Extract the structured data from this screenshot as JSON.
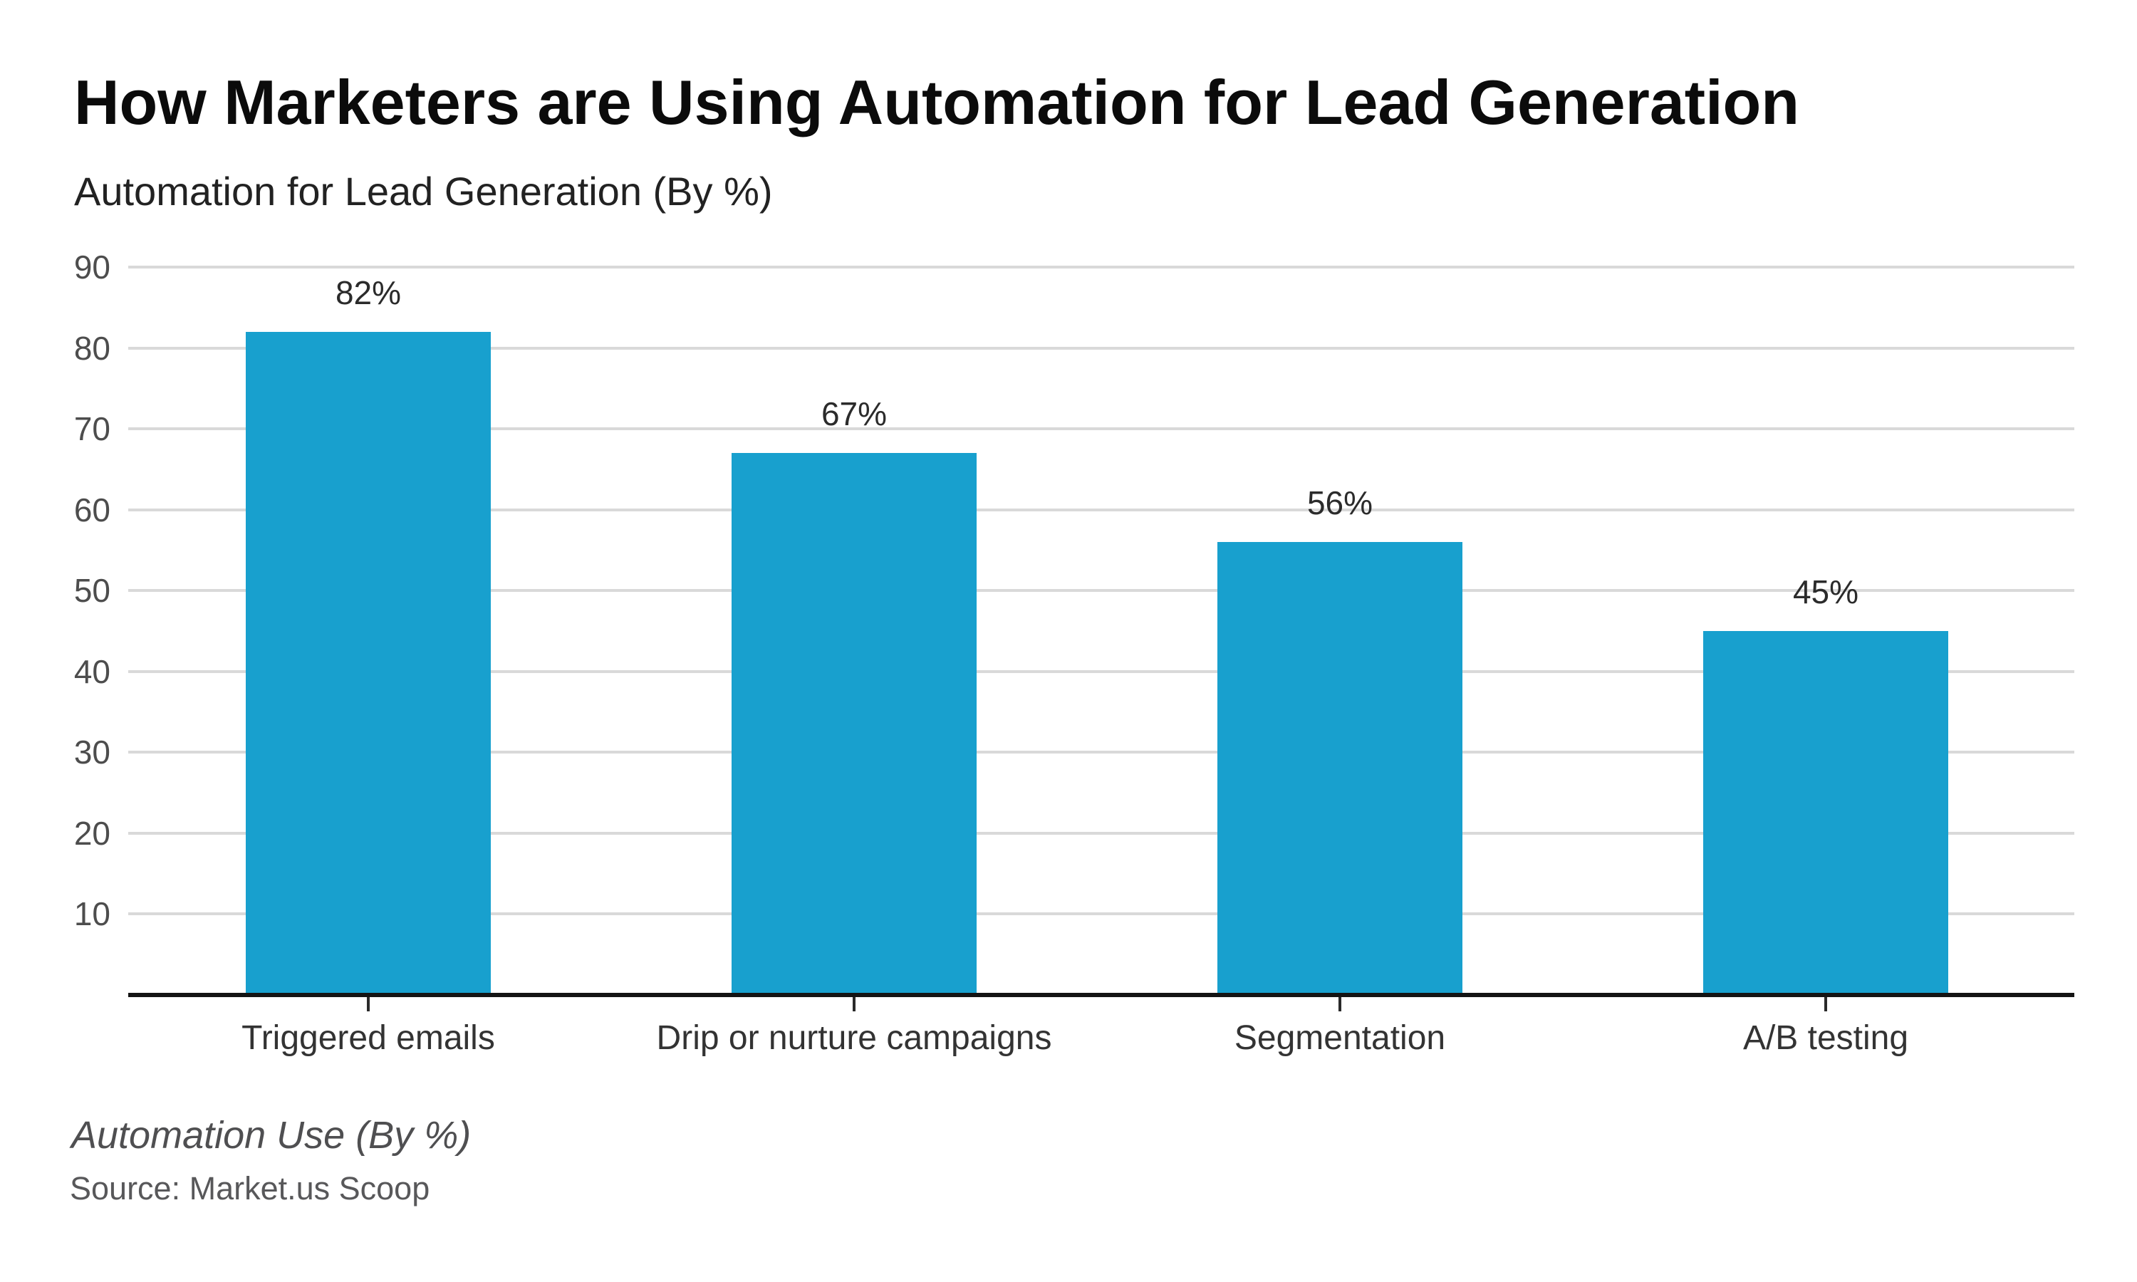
{
  "header": {
    "title": "How Marketers are Using Automation for Lead Generation",
    "subtitle": "Automation for Lead Generation (By %)"
  },
  "footer": {
    "note": "Automation Use (By %)",
    "source": "Source: Market.us Scoop"
  },
  "colors": {
    "bar": "#18a0ce",
    "gridline": "#d9d9d9",
    "axis_baseline": "#141414",
    "tick_mark": "#2a2a2a",
    "tick_label": "#4d4d4d",
    "category_label": "#333333",
    "value_label": "#2b2b2b",
    "background": "#ffffff"
  },
  "chart_data": {
    "type": "bar",
    "title": "How Marketers are Using Automation for Lead Generation",
    "subtitle": "Automation for Lead Generation (By %)",
    "categories": [
      "Triggered emails",
      "Drip or nurture campaigns",
      "Segmentation",
      "A/B testing"
    ],
    "values": [
      82,
      67,
      56,
      45
    ],
    "value_labels": [
      "82%",
      "67%",
      "56%",
      "45%"
    ],
    "xlabel": "",
    "ylabel": "",
    "ylim": [
      0,
      93
    ],
    "yticks": [
      10,
      20,
      30,
      40,
      50,
      60,
      70,
      80,
      90
    ],
    "grid": "horizontal",
    "legend": "none",
    "bar_color": "#18a0ce",
    "footnote": "Automation Use (By %)",
    "source": "Source: Market.us Scoop"
  }
}
